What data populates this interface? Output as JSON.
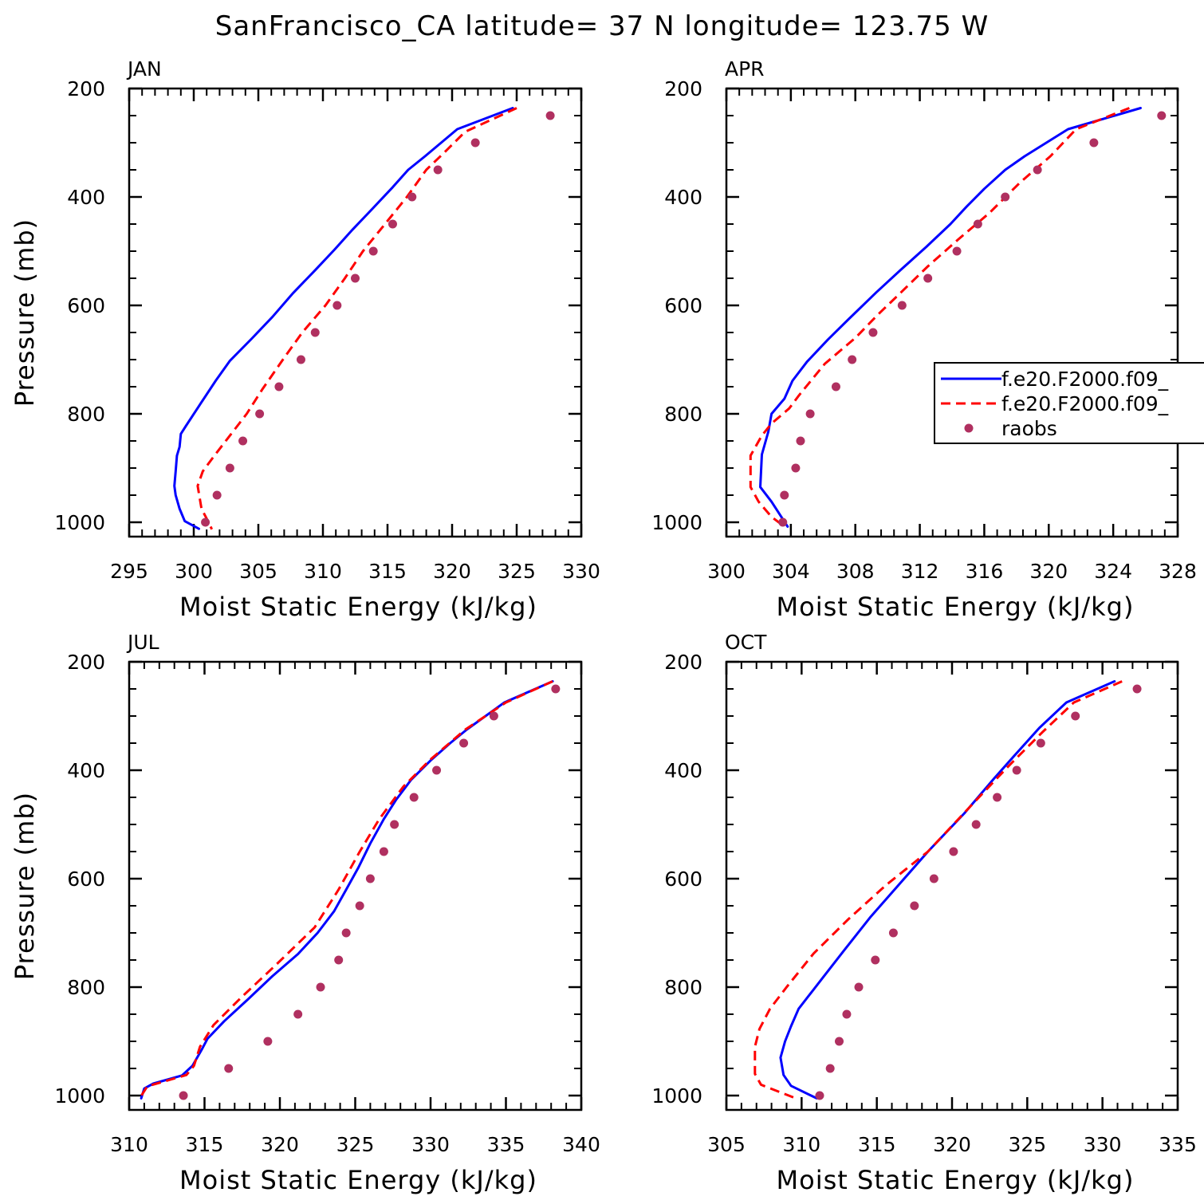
{
  "title": "SanFrancisco_CA  latitude= 37 N longitude= 123.75 W",
  "chart_data": [
    {
      "type": "line",
      "panel": "JAN",
      "xlabel": "Moist Static Energy (kJ/kg)",
      "ylabel": "Pressure (mb)",
      "xlim": [
        295,
        330
      ],
      "ylim": [
        1000,
        200
      ],
      "xticks": [
        295,
        300,
        305,
        310,
        315,
        320,
        325,
        330
      ],
      "yticks": [
        200,
        400,
        600,
        800,
        1000
      ],
      "series": [
        {
          "name": "f.e20.F2000.f09_",
          "style": "solid",
          "color": "#0000ff",
          "points": [
            [
              324.7,
              236
            ],
            [
              320.4,
              275
            ],
            [
              317.9,
              325
            ],
            [
              316.6,
              350
            ],
            [
              315.4,
              382
            ],
            [
              313.9,
              420
            ],
            [
              312.3,
              460
            ],
            [
              310.9,
              497
            ],
            [
              309.4,
              535
            ],
            [
              307.7,
              577
            ],
            [
              306.1,
              621
            ],
            [
              304.5,
              661
            ],
            [
              302.8,
              702
            ],
            [
              301.7,
              739
            ],
            [
              300.7,
              775
            ],
            [
              299.4,
              822
            ],
            [
              299.0,
              837
            ],
            [
              298.9,
              861
            ],
            [
              298.7,
              877
            ],
            [
              298.6,
              906
            ],
            [
              298.5,
              933
            ],
            [
              298.6,
              950
            ],
            [
              298.9,
              975
            ],
            [
              299.3,
              998
            ],
            [
              300.4,
              1012
            ]
          ]
        },
        {
          "name": "f.e20.F2000.f09_",
          "style": "dashed",
          "color": "#ff0000",
          "points": [
            [
              325.0,
              236
            ],
            [
              321.0,
              280
            ],
            [
              319.4,
              318
            ],
            [
              318.0,
              350
            ],
            [
              316.5,
              400
            ],
            [
              314.8,
              450
            ],
            [
              313.1,
              500
            ],
            [
              311.7,
              550
            ],
            [
              310.2,
              600
            ],
            [
              308.4,
              650
            ],
            [
              306.9,
              700
            ],
            [
              305.3,
              755
            ],
            [
              304.1,
              800
            ],
            [
              302.8,
              840
            ],
            [
              301.6,
              877
            ],
            [
              300.7,
              906
            ],
            [
              300.3,
              933
            ],
            [
              300.6,
              975
            ],
            [
              301.1,
              998
            ],
            [
              301.4,
              1013
            ]
          ]
        },
        {
          "name": "raobs",
          "style": "dots",
          "color": "#b03060",
          "points": [
            [
              327.6,
              250
            ],
            [
              321.8,
              300
            ],
            [
              318.9,
              350
            ],
            [
              316.9,
              400
            ],
            [
              315.4,
              450
            ],
            [
              313.9,
              500
            ],
            [
              312.5,
              550
            ],
            [
              311.1,
              600
            ],
            [
              309.4,
              650
            ],
            [
              308.3,
              700
            ],
            [
              306.6,
              750
            ],
            [
              305.1,
              800
            ],
            [
              303.8,
              850
            ],
            [
              302.8,
              900
            ],
            [
              301.8,
              950
            ],
            [
              300.9,
              1000
            ]
          ]
        }
      ]
    },
    {
      "type": "line",
      "panel": "APR",
      "xlabel": "Moist Static Energy (kJ/kg)",
      "ylabel": "",
      "xlim": [
        300,
        328
      ],
      "ylim": [
        1000,
        200
      ],
      "xticks": [
        300,
        304,
        308,
        312,
        316,
        320,
        324,
        328
      ],
      "yticks": [
        200,
        400,
        600,
        800,
        1000
      ],
      "legend": {
        "placement": "right",
        "entries": [
          {
            "label": "f.e20.F2000.f09_",
            "style": "solid",
            "color": "#0000ff"
          },
          {
            "label": "f.e20.F2000.f09_",
            "style": "dashed",
            "color": "#ff0000"
          },
          {
            "label": "raobs",
            "style": "dots",
            "color": "#b03060"
          }
        ]
      },
      "series": [
        {
          "name": "f.e20.F2000.f09_",
          "style": "solid",
          "color": "#0000ff",
          "points": [
            [
              325.7,
              236
            ],
            [
              321.2,
              275
            ],
            [
              318.5,
              325
            ],
            [
              317.3,
              350
            ],
            [
              316.0,
              385
            ],
            [
              314.9,
              418
            ],
            [
              313.9,
              450
            ],
            [
              312.4,
              492
            ],
            [
              310.8,
              535
            ],
            [
              309.3,
              576
            ],
            [
              307.6,
              625
            ],
            [
              306.3,
              663
            ],
            [
              305.0,
              704
            ],
            [
              304.1,
              739
            ],
            [
              303.6,
              772
            ],
            [
              302.8,
              800
            ],
            [
              302.6,
              833
            ],
            [
              302.2,
              875
            ],
            [
              302.1,
              935
            ],
            [
              302.8,
              962
            ],
            [
              303.8,
              1008
            ]
          ]
        },
        {
          "name": "f.e20.F2000.f09_",
          "style": "dashed",
          "color": "#ff0000",
          "points": [
            [
              325.0,
              236
            ],
            [
              321.7,
              275
            ],
            [
              320.1,
              325
            ],
            [
              318.2,
              374
            ],
            [
              316.3,
              430
            ],
            [
              314.4,
              478
            ],
            [
              312.5,
              528
            ],
            [
              310.8,
              577
            ],
            [
              309.4,
              617
            ],
            [
              308.0,
              660
            ],
            [
              306.1,
              708
            ],
            [
              304.5,
              766
            ],
            [
              303.9,
              790
            ],
            [
              302.8,
              818
            ],
            [
              302.2,
              840
            ],
            [
              301.5,
              877
            ],
            [
              301.5,
              935
            ],
            [
              302.0,
              962
            ],
            [
              302.8,
              990
            ],
            [
              303.6,
              1008
            ]
          ]
        },
        {
          "name": "raobs",
          "style": "dots",
          "color": "#b03060",
          "points": [
            [
              327.0,
              250
            ],
            [
              322.8,
              300
            ],
            [
              319.3,
              350
            ],
            [
              317.3,
              400
            ],
            [
              315.6,
              450
            ],
            [
              314.3,
              500
            ],
            [
              312.5,
              550
            ],
            [
              310.9,
              600
            ],
            [
              309.1,
              650
            ],
            [
              307.8,
              700
            ],
            [
              306.8,
              750
            ],
            [
              305.2,
              800
            ],
            [
              304.6,
              850
            ],
            [
              304.3,
              900
            ],
            [
              303.6,
              950
            ],
            [
              303.5,
              1000
            ]
          ]
        }
      ]
    },
    {
      "type": "line",
      "panel": "JUL",
      "xlabel": "Moist Static Energy (kJ/kg)",
      "ylabel": "Pressure (mb)",
      "xlim": [
        310,
        340
      ],
      "ylim": [
        1000,
        200
      ],
      "xticks": [
        310,
        315,
        320,
        325,
        330,
        335,
        340
      ],
      "yticks": [
        200,
        400,
        600,
        800,
        1000
      ],
      "series": [
        {
          "name": "f.e20.F2000.f09_",
          "style": "solid",
          "color": "#0000ff",
          "points": [
            [
              338.1,
              236
            ],
            [
              334.9,
              275
            ],
            [
              332.4,
              325
            ],
            [
              331.3,
              350
            ],
            [
              330.0,
              382
            ],
            [
              328.7,
              418
            ],
            [
              327.7,
              455
            ],
            [
              326.9,
              490
            ],
            [
              326.0,
              535
            ],
            [
              325.2,
              580
            ],
            [
              324.4,
              620
            ],
            [
              323.6,
              660
            ],
            [
              322.5,
              700
            ],
            [
              321.2,
              739
            ],
            [
              319.5,
              780
            ],
            [
              317.9,
              822
            ],
            [
              316.3,
              863
            ],
            [
              315.2,
              895
            ],
            [
              314.8,
              916
            ],
            [
              314.2,
              945
            ],
            [
              313.5,
              963
            ],
            [
              311.6,
              978
            ],
            [
              311.0,
              987
            ],
            [
              310.8,
              1005
            ]
          ]
        },
        {
          "name": "f.e20.F2000.f09_",
          "style": "dashed",
          "color": "#ff0000",
          "points": [
            [
              338.1,
              236
            ],
            [
              335.0,
              275
            ],
            [
              332.3,
              325
            ],
            [
              330.0,
              380
            ],
            [
              328.2,
              430
            ],
            [
              326.6,
              490
            ],
            [
              325.3,
              550
            ],
            [
              323.9,
              620
            ],
            [
              322.3,
              690
            ],
            [
              319.7,
              760
            ],
            [
              317.4,
              820
            ],
            [
              315.6,
              870
            ],
            [
              314.7,
              910
            ],
            [
              314.3,
              945
            ],
            [
              313.8,
              962
            ],
            [
              311.2,
              983
            ],
            [
              310.7,
              1005
            ]
          ]
        },
        {
          "name": "raobs",
          "style": "dots",
          "color": "#b03060",
          "points": [
            [
              338.3,
              250
            ],
            [
              334.2,
              300
            ],
            [
              332.2,
              350
            ],
            [
              330.4,
              400
            ],
            [
              328.9,
              450
            ],
            [
              327.6,
              500
            ],
            [
              326.9,
              550
            ],
            [
              326.0,
              600
            ],
            [
              325.3,
              650
            ],
            [
              324.4,
              700
            ],
            [
              323.9,
              750
            ],
            [
              322.7,
              800
            ],
            [
              321.2,
              850
            ],
            [
              319.2,
              900
            ],
            [
              316.6,
              950
            ],
            [
              313.6,
              1000
            ]
          ]
        }
      ]
    },
    {
      "type": "line",
      "panel": "OCT",
      "xlabel": "Moist Static Energy (kJ/kg)",
      "ylabel": "",
      "xlim": [
        305,
        335
      ],
      "ylim": [
        1000,
        200
      ],
      "xticks": [
        305,
        310,
        315,
        320,
        325,
        330,
        335
      ],
      "yticks": [
        200,
        400,
        600,
        800,
        1000
      ],
      "series": [
        {
          "name": "f.e20.F2000.f09_",
          "style": "solid",
          "color": "#0000ff",
          "points": [
            [
              330.8,
              236
            ],
            [
              327.6,
              275
            ],
            [
              325.8,
              322
            ],
            [
              324.5,
              362
            ],
            [
              322.8,
              415
            ],
            [
              320.8,
              480
            ],
            [
              318.4,
              550
            ],
            [
              316.5,
              610
            ],
            [
              314.6,
              670
            ],
            [
              312.8,
              733
            ],
            [
              311.4,
              783
            ],
            [
              309.8,
              840
            ],
            [
              309.3,
              872
            ],
            [
              308.9,
              900
            ],
            [
              308.6,
              930
            ],
            [
              308.8,
              962
            ],
            [
              309.3,
              982
            ],
            [
              311.0,
              1005
            ]
          ]
        },
        {
          "name": "f.e20.F2000.f09_",
          "style": "dashed",
          "color": "#ff0000",
          "points": [
            [
              331.3,
              236
            ],
            [
              328.1,
              275
            ],
            [
              326.0,
              330
            ],
            [
              323.7,
              394
            ],
            [
              321.1,
              470
            ],
            [
              318.4,
              550
            ],
            [
              315.6,
              612
            ],
            [
              313.1,
              675
            ],
            [
              310.8,
              738
            ],
            [
              309.0,
              800
            ],
            [
              307.9,
              840
            ],
            [
              307.2,
              877
            ],
            [
              306.9,
              910
            ],
            [
              306.9,
              960
            ],
            [
              307.3,
              980
            ],
            [
              309.6,
              1005
            ]
          ]
        },
        {
          "name": "raobs",
          "style": "dots",
          "color": "#b03060",
          "points": [
            [
              332.3,
              250
            ],
            [
              328.2,
              300
            ],
            [
              325.9,
              350
            ],
            [
              324.3,
              400
            ],
            [
              323.0,
              450
            ],
            [
              321.6,
              500
            ],
            [
              320.1,
              550
            ],
            [
              318.8,
              600
            ],
            [
              317.5,
              650
            ],
            [
              316.1,
              700
            ],
            [
              314.9,
              750
            ],
            [
              313.8,
              800
            ],
            [
              313.0,
              850
            ],
            [
              312.5,
              900
            ],
            [
              311.9,
              950
            ],
            [
              311.2,
              1000
            ]
          ]
        }
      ]
    }
  ]
}
